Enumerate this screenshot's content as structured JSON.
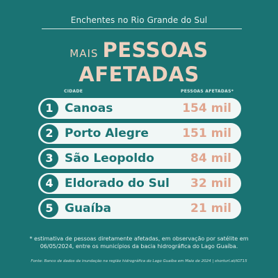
{
  "header": "Enchentes no Rio Grande do Sul",
  "title": {
    "small": "MAIS",
    "big": "PESSOAS",
    "line2": "AFETADAS"
  },
  "columns": {
    "city": "CIDADE",
    "people": "PESSOAS AFETADAS*"
  },
  "rows": [
    {
      "rank": "1",
      "city": "Canoas",
      "value": "154 mil"
    },
    {
      "rank": "2",
      "city": "Porto Alegre",
      "value": "151 mil"
    },
    {
      "rank": "3",
      "city": "São Leopoldo",
      "value": "84 mil"
    },
    {
      "rank": "4",
      "city": "Eldorado do Sul",
      "value": "32 mil"
    },
    {
      "rank": "5",
      "city": "Guaíba",
      "value": "21 mil"
    }
  ],
  "note": "* estimativa de pessoas diretamente afetadas, em observação por satélite em 06/05/2024, entre os municípios da bacia hidrográfica do Lago Guaíba.",
  "source": "Fonte: Banco de dados da inundação na região hidrográfica do Lago Guaíba em Maio de 2024 | shorturl.at/iGT15",
  "colors": {
    "background": "#1a7373",
    "accent": "#efd1bf",
    "value": "#e0a48d",
    "row_bg": "#f1f7f6"
  }
}
